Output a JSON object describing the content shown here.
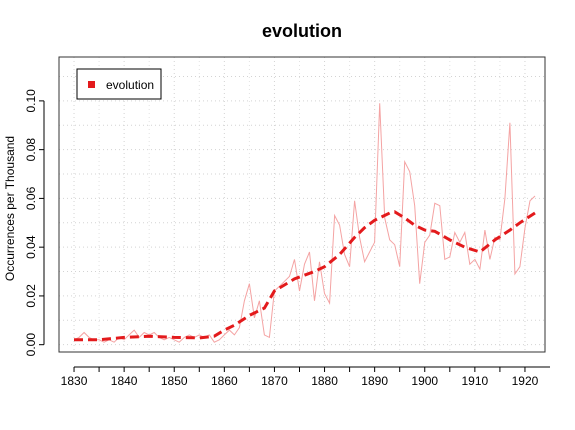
{
  "chart_data": {
    "type": "line",
    "title": "evolution",
    "xlabel": "",
    "ylabel": "Occurrences per Thousand",
    "xlim": [
      1827,
      1924
    ],
    "ylim": [
      -0.003,
      0.118
    ],
    "x_ticks": [
      1830,
      1840,
      1850,
      1860,
      1870,
      1880,
      1890,
      1900,
      1910,
      1920
    ],
    "y_ticks": [
      0.0,
      0.02,
      0.04,
      0.06,
      0.08,
      0.1
    ],
    "y_tick_labels": [
      "0.00",
      "0.02",
      "0.04",
      "0.06",
      "0.08",
      "0.10"
    ],
    "grid": true,
    "legend": {
      "position": "top-left",
      "entries": [
        "evolution"
      ]
    },
    "series": [
      {
        "name": "evolution",
        "style": "raw",
        "color": "#f4a3a3",
        "x": [
          1830,
          1831,
          1832,
          1833,
          1834,
          1835,
          1836,
          1837,
          1838,
          1839,
          1840,
          1841,
          1842,
          1843,
          1844,
          1845,
          1846,
          1847,
          1848,
          1849,
          1850,
          1851,
          1852,
          1853,
          1854,
          1855,
          1856,
          1857,
          1858,
          1859,
          1860,
          1861,
          1862,
          1863,
          1864,
          1865,
          1866,
          1867,
          1868,
          1869,
          1870,
          1871,
          1872,
          1873,
          1874,
          1875,
          1876,
          1877,
          1878,
          1879,
          1880,
          1881,
          1882,
          1883,
          1884,
          1885,
          1886,
          1887,
          1888,
          1889,
          1890,
          1891,
          1892,
          1893,
          1894,
          1895,
          1896,
          1897,
          1898,
          1899,
          1900,
          1901,
          1902,
          1903,
          1904,
          1905,
          1906,
          1907,
          1908,
          1909,
          1910,
          1911,
          1912,
          1913,
          1914,
          1915,
          1916,
          1917,
          1918,
          1919,
          1920,
          1921,
          1922
        ],
        "y": [
          0.002,
          0.003,
          0.005,
          0.003,
          0.002,
          0.002,
          0.001,
          0.002,
          0.001,
          0.003,
          0.002,
          0.004,
          0.006,
          0.003,
          0.005,
          0.004,
          0.005,
          0.003,
          0.002,
          0.003,
          0.002,
          0.001,
          0.003,
          0.004,
          0.003,
          0.004,
          0.003,
          0.004,
          0.001,
          0.002,
          0.004,
          0.006,
          0.004,
          0.007,
          0.018,
          0.025,
          0.011,
          0.018,
          0.004,
          0.003,
          0.022,
          0.024,
          0.026,
          0.028,
          0.035,
          0.022,
          0.033,
          0.038,
          0.018,
          0.034,
          0.021,
          0.017,
          0.053,
          0.049,
          0.037,
          0.032,
          0.059,
          0.044,
          0.034,
          0.038,
          0.042,
          0.099,
          0.052,
          0.043,
          0.041,
          0.032,
          0.075,
          0.071,
          0.057,
          0.025,
          0.042,
          0.045,
          0.058,
          0.057,
          0.035,
          0.036,
          0.046,
          0.042,
          0.046,
          0.033,
          0.035,
          0.031,
          0.047,
          0.035,
          0.044,
          0.043,
          0.06,
          0.091,
          0.029,
          0.032,
          0.048,
          0.059,
          0.061
        ]
      },
      {
        "name": "",
        "style": "smoothed",
        "color": "#e31a1c",
        "x": [
          1830,
          1835,
          1840,
          1845,
          1850,
          1855,
          1858,
          1860,
          1862,
          1865,
          1868,
          1870,
          1874,
          1878,
          1880,
          1883,
          1886,
          1888,
          1890,
          1893,
          1894,
          1896,
          1898,
          1900,
          1902,
          1905,
          1908,
          1911,
          1914,
          1917,
          1919,
          1922
        ],
        "y": [
          0.002,
          0.002,
          0.003,
          0.0035,
          0.003,
          0.0028,
          0.0035,
          0.006,
          0.008,
          0.012,
          0.015,
          0.022,
          0.027,
          0.03,
          0.032,
          0.037,
          0.044,
          0.048,
          0.051,
          0.054,
          0.0545,
          0.052,
          0.049,
          0.047,
          0.0465,
          0.043,
          0.04,
          0.038,
          0.043,
          0.047,
          0.05,
          0.054
        ]
      }
    ]
  }
}
